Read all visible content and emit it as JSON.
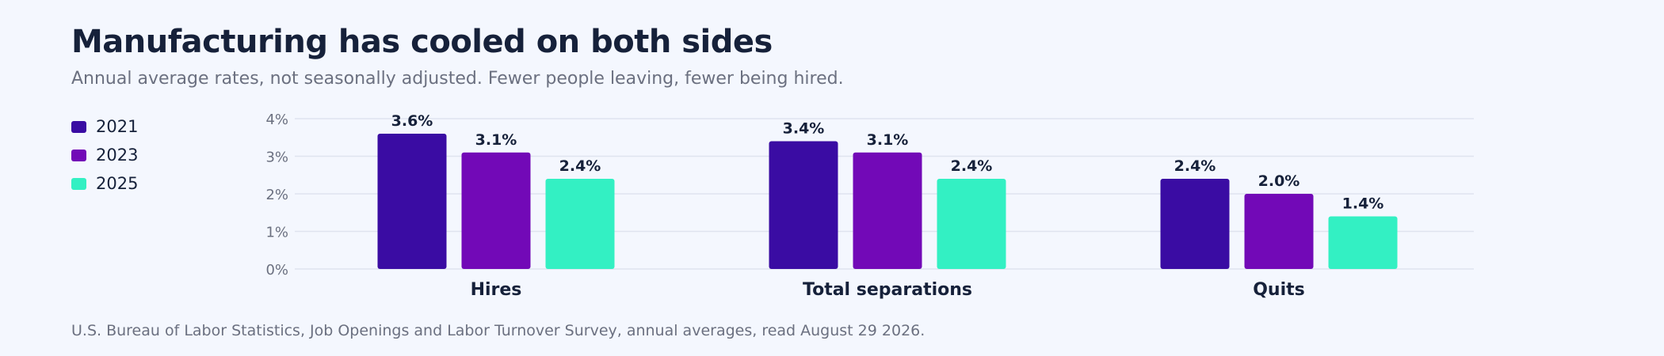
{
  "title": "Manufacturing has cooled on both sides",
  "subtitle": "Annual average rates, not seasonally adjusted. Fewer people leaving, fewer being hired.",
  "source": "U.S. Bureau of Labor Statistics, Job Openings and Labor Turnover Survey, annual averages, read August 29 2026.",
  "chart_data": {
    "type": "bar",
    "categories": [
      "Hires",
      "Total separations",
      "Quits"
    ],
    "series": [
      {
        "name": "2021",
        "values": [
          3.6,
          3.4,
          2.4
        ],
        "color": "#3a0ca3"
      },
      {
        "name": "2023",
        "values": [
          3.1,
          3.1,
          2.0
        ],
        "color": "#7209b7"
      },
      {
        "name": "2025",
        "values": [
          2.4,
          2.4,
          1.4
        ],
        "color": "#33f0c3"
      }
    ],
    "data_labels": [
      [
        "3.6%",
        "3.4%",
        "2.4%"
      ],
      [
        "3.1%",
        "3.1%",
        "2.0%"
      ],
      [
        "2.4%",
        "2.4%",
        "1.4%"
      ]
    ],
    "yticks": [
      0,
      1,
      2,
      3,
      4
    ],
    "ytick_labels": [
      "0%",
      "1%",
      "2%",
      "3%",
      "4%"
    ],
    "ylim": [
      0,
      4
    ],
    "grid": true,
    "legend_position": "left"
  }
}
